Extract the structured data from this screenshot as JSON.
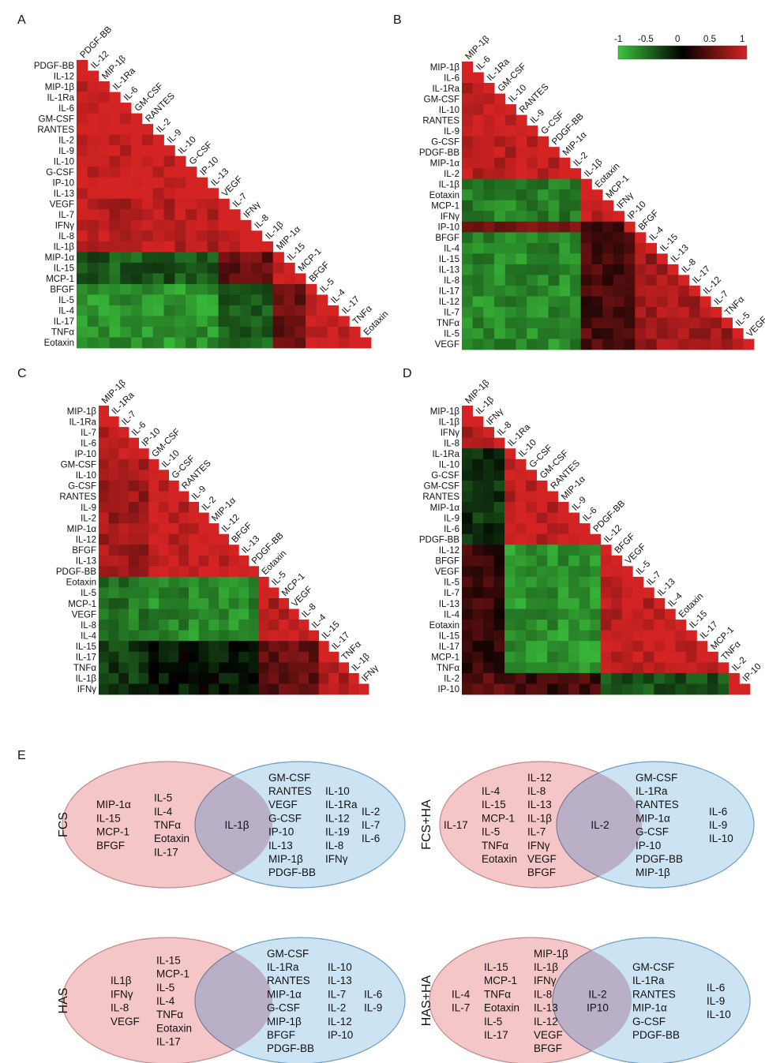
{
  "panels": {
    "A": "A",
    "B": "B",
    "C": "C",
    "D": "D",
    "E": "E"
  },
  "colorbar": {
    "ticks": [
      "-1",
      "-0.5",
      "0",
      "0.5",
      "1"
    ],
    "colors": {
      "neg": "#3cc43c",
      "zero": "#000000",
      "pos": "#d42323"
    }
  },
  "chart_data": [
    {
      "type": "heatmap",
      "panel": "A",
      "title": "",
      "labels": [
        "PDGF-BB",
        "IL-12",
        "MIP-1β",
        "IL-1Ra",
        "IL-6",
        "GM-CSF",
        "RANTES",
        "IL-2",
        "IL-9",
        "IL-10",
        "G-CSF",
        "IP-10",
        "IL-13",
        "VEGF",
        "IL-7",
        "IFNγ",
        "IL-8",
        "IL-1β",
        "MIP-1α",
        "IL-15",
        "MCP-1",
        "BFGF",
        "IL-5",
        "IL-4",
        "IL-17",
        "TNFα",
        "Eotaxin"
      ],
      "clusters": [
        13,
        5,
        3,
        6
      ],
      "block_values": [
        [
          0.95,
          0.85,
          -0.45,
          -0.75
        ],
        [
          0.85,
          0.95,
          0.5,
          -0.45
        ],
        [
          -0.45,
          0.5,
          0.95,
          0.45
        ],
        [
          -0.75,
          -0.45,
          0.45,
          0.95
        ]
      ],
      "value_range": [
        -1,
        1
      ]
    },
    {
      "type": "heatmap",
      "panel": "B",
      "title": "",
      "labels": [
        "MIP-1β",
        "IL-6",
        "IL-1Ra",
        "GM-CSF",
        "IL-10",
        "RANTES",
        "IL-9",
        "G-CSF",
        "PDGF-BB",
        "MIP-1α",
        "IL-2",
        "IL-1β",
        "Eotaxin",
        "MCP-1",
        "IFNγ",
        "IP-10",
        "BFGF",
        "IL-4",
        "IL-15",
        "IL-13",
        "IL-8",
        "IL-17",
        "IL-12",
        "IL-7",
        "TNFα",
        "IL-5",
        "VEGF"
      ],
      "clusters": [
        11,
        4,
        1,
        11
      ],
      "block_values": [
        [
          0.9,
          -0.65,
          0.55,
          -0.7
        ],
        [
          -0.65,
          0.9,
          0.15,
          0.35
        ],
        [
          0.55,
          0.15,
          1.0,
          0.3
        ],
        [
          -0.7,
          0.35,
          0.3,
          0.75
        ]
      ],
      "value_range": [
        -1,
        1
      ]
    },
    {
      "type": "heatmap",
      "panel": "C",
      "title": "",
      "labels": [
        "MIP-1β",
        "IL-1Ra",
        "IL-7",
        "IL-6",
        "IP-10",
        "GM-CSF",
        "IL-10",
        "G-CSF",
        "RANTES",
        "IL-9",
        "IL-2",
        "MIP-1α",
        "IL-12",
        "BFGF",
        "IL-13",
        "PDGF-BB",
        "Eotaxin",
        "IL-5",
        "MCP-1",
        "VEGF",
        "IL-8",
        "IL-4",
        "IL-15",
        "IL-17",
        "TNFα",
        "IL-1β",
        "IFNγ"
      ],
      "clusters": [
        5,
        11,
        6,
        5
      ],
      "block_values": [
        [
          0.9,
          0.75,
          -0.6,
          -0.3
        ],
        [
          0.75,
          0.9,
          -0.7,
          -0.1
        ],
        [
          -0.6,
          -0.7,
          0.85,
          0.45
        ],
        [
          -0.3,
          -0.1,
          0.45,
          0.85
        ]
      ],
      "value_range": [
        -1,
        1
      ]
    },
    {
      "type": "heatmap",
      "panel": "D",
      "title": "",
      "labels": [
        "MIP-1β",
        "IL-1β",
        "IFNγ",
        "IL-8",
        "IL-1Ra",
        "IL-10",
        "G-CSF",
        "GM-CSF",
        "RANTES",
        "MIP-1α",
        "IL-9",
        "IL-6",
        "PDGF-BB",
        "IL-12",
        "BFGF",
        "VEGF",
        "IL-5",
        "IL-7",
        "IL-13",
        "IL-4",
        "Eotaxin",
        "IL-15",
        "IL-17",
        "MCP-1",
        "TNFα",
        "IL-2",
        "IP-10"
      ],
      "clusters": [
        4,
        9,
        12,
        2
      ],
      "block_values": [
        [
          0.85,
          -0.25,
          0.25,
          0.4
        ],
        [
          -0.25,
          0.9,
          -0.75,
          0.3
        ],
        [
          0.25,
          -0.75,
          0.9,
          -0.4
        ],
        [
          0.4,
          0.3,
          -0.4,
          0.9
        ]
      ],
      "value_range": [
        -1,
        1
      ]
    }
  ],
  "venns": [
    {
      "condition": "FCS",
      "left": {
        "cols": [
          [
            "MIP-1α",
            "IL-15",
            "MCP-1",
            "BFGF"
          ],
          [
            "IL-5",
            "IL-4",
            "TNFα",
            "Eotaxin",
            "IL-17"
          ]
        ]
      },
      "both": [
        "IL-1β"
      ],
      "right": {
        "cols": [
          [
            "GM-CSF",
            "RANTES",
            "VEGF",
            "G-CSF",
            "IP-10",
            "IL-13",
            "MIP-1β",
            "PDGF-BB"
          ],
          [
            "IL-10",
            "IL-1Ra",
            "IL-12",
            "IL-19",
            "IL-8",
            "IFNγ"
          ],
          [
            "IL-2",
            "IL-7",
            "IL-6"
          ]
        ]
      }
    },
    {
      "condition": "FCS+HA",
      "left": {
        "cols": [
          [
            "IL-17"
          ],
          [
            "IL-4",
            "IL-15",
            "MCP-1",
            "IL-5",
            "TNFα",
            "Eotaxin"
          ],
          [
            "IL-12",
            "IL-8",
            "IL-13",
            "IL-1β",
            "IL-7",
            "IFNγ",
            "VEGF",
            "BFGF"
          ]
        ]
      },
      "both": [
        "IL-2"
      ],
      "right": {
        "cols": [
          [
            "GM-CSF",
            "IL-1Ra",
            "RANTES",
            "MIP-1α",
            "G-CSF",
            "IP-10",
            "PDGF-BB",
            "MIP-1β"
          ],
          [
            "IL-6",
            "IL-9",
            "IL-10"
          ]
        ]
      }
    },
    {
      "condition": "HAS",
      "left": {
        "cols": [
          [
            "IL1β",
            "IFNγ",
            "IL-8",
            "VEGF"
          ],
          [
            "IL-15",
            "MCP-1",
            "IL-5",
            "IL-4",
            "TNFα",
            "Eotaxin",
            "IL-17"
          ]
        ]
      },
      "both": [],
      "right": {
        "cols": [
          [
            "GM-CSF",
            "IL-1Ra",
            "RANTES",
            "MIP-1α",
            "G-CSF",
            "MIP-1β",
            "BFGF",
            "PDGF-BB"
          ],
          [
            "IL-10",
            "IL-13",
            "IL-7",
            "IL-2",
            "IL-12",
            "IP-10"
          ],
          [
            "IL-6",
            "IL-9"
          ]
        ]
      }
    },
    {
      "condition": "HAS+HA",
      "left": {
        "cols": [
          [
            "IL-4",
            "IL-7"
          ],
          [
            "IL-15",
            "MCP-1",
            "TNFα",
            "Eotaxin",
            "IL-5",
            "IL-17"
          ],
          [
            "MIP-1β",
            "IL-1β",
            "IFNγ",
            "IL-8",
            "IL-13",
            "IL-12",
            "VEGF",
            "BFGF"
          ]
        ]
      },
      "both": [
        "IL-2",
        "IP10"
      ],
      "right": {
        "cols": [
          [
            "GM-CSF",
            "IL-1Ra",
            "RANTES",
            "MIP-1α",
            "G-CSF",
            "PDGF-BB"
          ],
          [
            "IL-6",
            "IL-9",
            "IL-10"
          ]
        ]
      }
    }
  ]
}
